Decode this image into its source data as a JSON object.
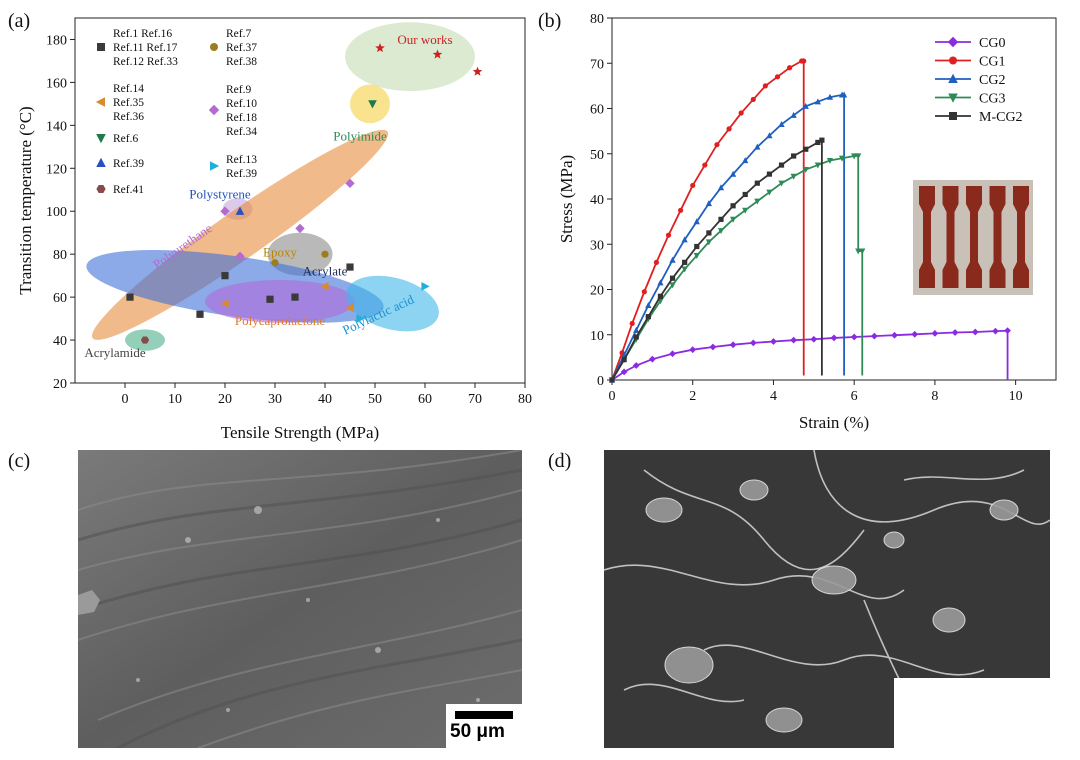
{
  "panels": {
    "a": "(a)",
    "b": "(b)",
    "c": "(c)",
    "d": "(d)"
  },
  "chart_data": [
    {
      "type": "scatter",
      "panel": "a",
      "xlabel": "Tensile Strength (MPa)",
      "ylabel": "Transition temperature (°C)",
      "xlim": [
        -10,
        80
      ],
      "ylim": [
        20,
        190
      ],
      "xticks": [
        0,
        10,
        20,
        30,
        40,
        50,
        60,
        70,
        80
      ],
      "yticks": [
        20,
        40,
        60,
        80,
        100,
        120,
        140,
        160,
        180
      ],
      "grid": false,
      "regions": [
        {
          "label": "Our works",
          "cx": 57,
          "cy": 172,
          "rx": 13,
          "ry": 16,
          "fill": "#c5dcb4",
          "label_color": "#cc2222"
        },
        {
          "label": "Polyimide",
          "cx": 49,
          "cy": 150,
          "rx": 4,
          "ry": 9,
          "fill": "#f5d142",
          "label_color": "#2e8b57"
        },
        {
          "label": "Polystyrene",
          "cx": 22.5,
          "cy": 101,
          "rx": 3,
          "ry": 5,
          "fill": "#c4a8d8",
          "label_color": "#1f4fbf"
        },
        {
          "label": "Polyurethane",
          "cx": 23,
          "cy": 89,
          "rx": 36,
          "ry": 11,
          "rot": -35,
          "fill": "#e88c3c",
          "label_color": "#b36ad1"
        },
        {
          "label": "Epoxy",
          "cx": 35,
          "cy": 80,
          "rx": 6.5,
          "ry": 10,
          "fill": "#8a8a8a",
          "label_color": "#b8860b"
        },
        {
          "label": "Acrylate",
          "cx": 22,
          "cy": 65,
          "rx": 30,
          "ry": 14,
          "rot": 8,
          "fill": "#3f6fd8",
          "label_color": "#1a2a5a"
        },
        {
          "label": "Polycaprolactone",
          "cx": 31,
          "cy": 58,
          "rx": 15,
          "ry": 10,
          "fill": "#b06bd8",
          "label_color": "#e07b2a"
        },
        {
          "label": "Polylactic acid",
          "cx": 53.5,
          "cy": 57,
          "rx": 9.5,
          "ry": 12,
          "rot": 15,
          "fill": "#3fb8e8",
          "label_color": "#1f8fd0"
        },
        {
          "label": "Acrylamide",
          "cx": 4,
          "cy": 40,
          "rx": 4,
          "ry": 5,
          "fill": "#4db08a",
          "label_color": "#444"
        }
      ],
      "series": [
        {
          "name": "Ref.1 Ref.16\nRef.11 Ref.17\nRef.12 Ref.33",
          "marker": "square",
          "color": "#3a3a3a",
          "points": [
            [
              1,
              60
            ],
            [
              15,
              52
            ],
            [
              20,
              70
            ],
            [
              29,
              59
            ],
            [
              34,
              60
            ],
            [
              45,
              74
            ]
          ]
        },
        {
          "name": "Ref.7\nRef.37\nRef.38",
          "marker": "circle",
          "color": "#9a7d1c",
          "points": [
            [
              30,
              76
            ],
            [
              40,
              80
            ]
          ]
        },
        {
          "name": "Ref.14\nRef.35\nRef.36",
          "marker": "triangle-left",
          "color": "#d98a2b",
          "points": [
            [
              20,
              57
            ],
            [
              40,
              65
            ],
            [
              45,
              55
            ]
          ]
        },
        {
          "name": "Ref.9\nRef.10\nRef.18\nRef.34",
          "marker": "diamond",
          "color": "#b36ad1",
          "points": [
            [
              23,
              79
            ],
            [
              35,
              92
            ],
            [
              45,
              113
            ],
            [
              20,
              100
            ]
          ]
        },
        {
          "name": "Ref.6",
          "marker": "triangle-down",
          "color": "#1f7a4a",
          "points": [
            [
              49.5,
              150
            ]
          ]
        },
        {
          "name": "Ref.13\nRef.39",
          "marker": "triangle-right",
          "color": "#1fb0d8",
          "points": [
            [
              47,
              50
            ],
            [
              60,
              65
            ]
          ]
        },
        {
          "name": "Ref.39",
          "marker": "triangle-up",
          "color": "#2b4fbf",
          "points": [
            [
              23,
              100
            ]
          ]
        },
        {
          "name": "Ref.41",
          "marker": "hexagon",
          "color": "#8b4a4a",
          "points": [
            [
              4,
              40
            ]
          ]
        },
        {
          "name": "Our works",
          "marker": "star",
          "color": "#cc2222",
          "points": [
            [
              51,
              176
            ],
            [
              62.5,
              173
            ],
            [
              70.5,
              165
            ]
          ]
        }
      ]
    },
    {
      "type": "line",
      "panel": "b",
      "xlabel": "Strain (%)",
      "ylabel": "Stress (MPa)",
      "xlim": [
        0,
        11
      ],
      "ylim": [
        0,
        80
      ],
      "xticks": [
        0,
        2,
        4,
        6,
        8,
        10
      ],
      "yticks": [
        0,
        10,
        20,
        30,
        40,
        50,
        60,
        70,
        80
      ],
      "grid": false,
      "legend": "top-right",
      "series": [
        {
          "name": "CG0",
          "color": "#8a2be2",
          "marker": "diamond",
          "x": [
            0,
            0.3,
            0.6,
            1,
            1.5,
            2,
            2.5,
            3,
            3.5,
            4,
            4.5,
            5,
            5.5,
            6,
            6.5,
            7,
            7.5,
            8,
            8.5,
            9,
            9.5,
            9.8,
            9.8
          ],
          "y": [
            0,
            1.8,
            3.2,
            4.6,
            5.8,
            6.7,
            7.3,
            7.8,
            8.2,
            8.5,
            8.8,
            9.0,
            9.3,
            9.5,
            9.7,
            9.9,
            10.1,
            10.3,
            10.5,
            10.6,
            10.8,
            10.9,
            0
          ]
        },
        {
          "name": "CG1",
          "color": "#e02020",
          "marker": "circle",
          "x": [
            0,
            0.25,
            0.5,
            0.8,
            1.1,
            1.4,
            1.7,
            2,
            2.3,
            2.6,
            2.9,
            3.2,
            3.5,
            3.8,
            4.1,
            4.4,
            4.7,
            4.75,
            4.75
          ],
          "y": [
            0,
            6,
            12.5,
            19.5,
            26,
            32,
            37.5,
            43,
            47.5,
            52,
            55.5,
            59,
            62,
            65,
            67,
            69,
            70.5,
            70.5,
            1
          ]
        },
        {
          "name": "CG2",
          "color": "#1f5fbf",
          "marker": "triangle-up",
          "x": [
            0,
            0.3,
            0.6,
            0.9,
            1.2,
            1.5,
            1.8,
            2.1,
            2.4,
            2.7,
            3,
            3.3,
            3.6,
            3.9,
            4.2,
            4.5,
            4.8,
            5.1,
            5.4,
            5.7,
            5.75,
            5.75
          ],
          "y": [
            0,
            5.5,
            11,
            16.5,
            21.5,
            26.5,
            31,
            35,
            39,
            42.5,
            45.5,
            48.5,
            51.5,
            54,
            56.5,
            58.5,
            60.5,
            61.5,
            62.5,
            63,
            63,
            1
          ]
        },
        {
          "name": "CG3",
          "color": "#2e8b57",
          "marker": "triangle-down",
          "x": [
            0,
            0.3,
            0.6,
            0.9,
            1.2,
            1.5,
            1.8,
            2.1,
            2.4,
            2.7,
            3,
            3.3,
            3.6,
            3.9,
            4.2,
            4.5,
            4.8,
            5.1,
            5.4,
            5.7,
            6,
            6.1,
            6.1,
            6.2,
            6.2
          ],
          "y": [
            0,
            4.5,
            9,
            13.5,
            17.5,
            21,
            24.5,
            27.5,
            30.5,
            33,
            35.5,
            37.5,
            39.5,
            41.5,
            43.5,
            45,
            46.5,
            47.5,
            48.5,
            49,
            49.5,
            49.5,
            28.5,
            28.5,
            1
          ]
        },
        {
          "name": "M-CG2",
          "color": "#333333",
          "marker": "square",
          "x": [
            0,
            0.3,
            0.6,
            0.9,
            1.2,
            1.5,
            1.8,
            2.1,
            2.4,
            2.7,
            3,
            3.3,
            3.6,
            3.9,
            4.2,
            4.5,
            4.8,
            5.1,
            5.2,
            5.2
          ],
          "y": [
            0,
            4.5,
            9.5,
            14,
            18.5,
            22.5,
            26,
            29.5,
            32.5,
            35.5,
            38.5,
            41,
            43.5,
            45.5,
            47.5,
            49.5,
            51,
            52.5,
            53,
            1
          ]
        }
      ]
    }
  ],
  "sem_c": {
    "scale_label": "50 μm"
  }
}
